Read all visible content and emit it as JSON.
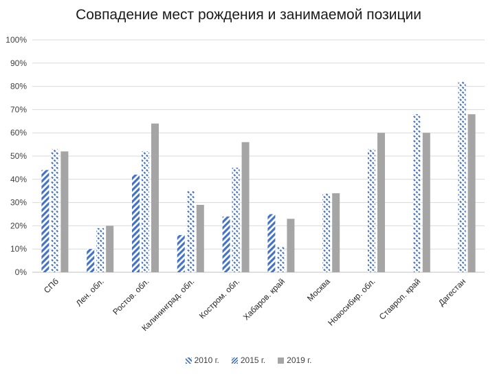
{
  "chart_data": {
    "type": "bar",
    "title": "Совпадение мест рождения и занимаемой позиции",
    "xlabel": "",
    "ylabel": "",
    "ylim": [
      0,
      100
    ],
    "y_ticks": [
      "0%",
      "10%",
      "20%",
      "30%",
      "40%",
      "50%",
      "60%",
      "70%",
      "80%",
      "90%",
      "100%"
    ],
    "grid": true,
    "legend_position": "bottom",
    "categories": [
      "СПб",
      "Лен. обл.",
      "Ростов. обл.",
      "Калининград. обл.",
      "Костром. обл.",
      "Хабаров. край",
      "Москва",
      "Новосибир. обл.",
      "Ставроп. край",
      "Дагестан"
    ],
    "series": [
      {
        "name": "2010 г.",
        "color": "#4472c4",
        "pattern": "wide-diagonal",
        "values": [
          44,
          10,
          42,
          16,
          24,
          25,
          null,
          null,
          null,
          null
        ]
      },
      {
        "name": "2015 г.",
        "color": "#4472c4",
        "pattern": "dashed-diagonal",
        "values": [
          53,
          19,
          52,
          35,
          45,
          11,
          34,
          53,
          68,
          82
        ]
      },
      {
        "name": "2019 г.",
        "color": "#a5a5a5",
        "pattern": "solid",
        "values": [
          52,
          20,
          64,
          29,
          56,
          23,
          34,
          60,
          60,
          68
        ]
      }
    ]
  }
}
